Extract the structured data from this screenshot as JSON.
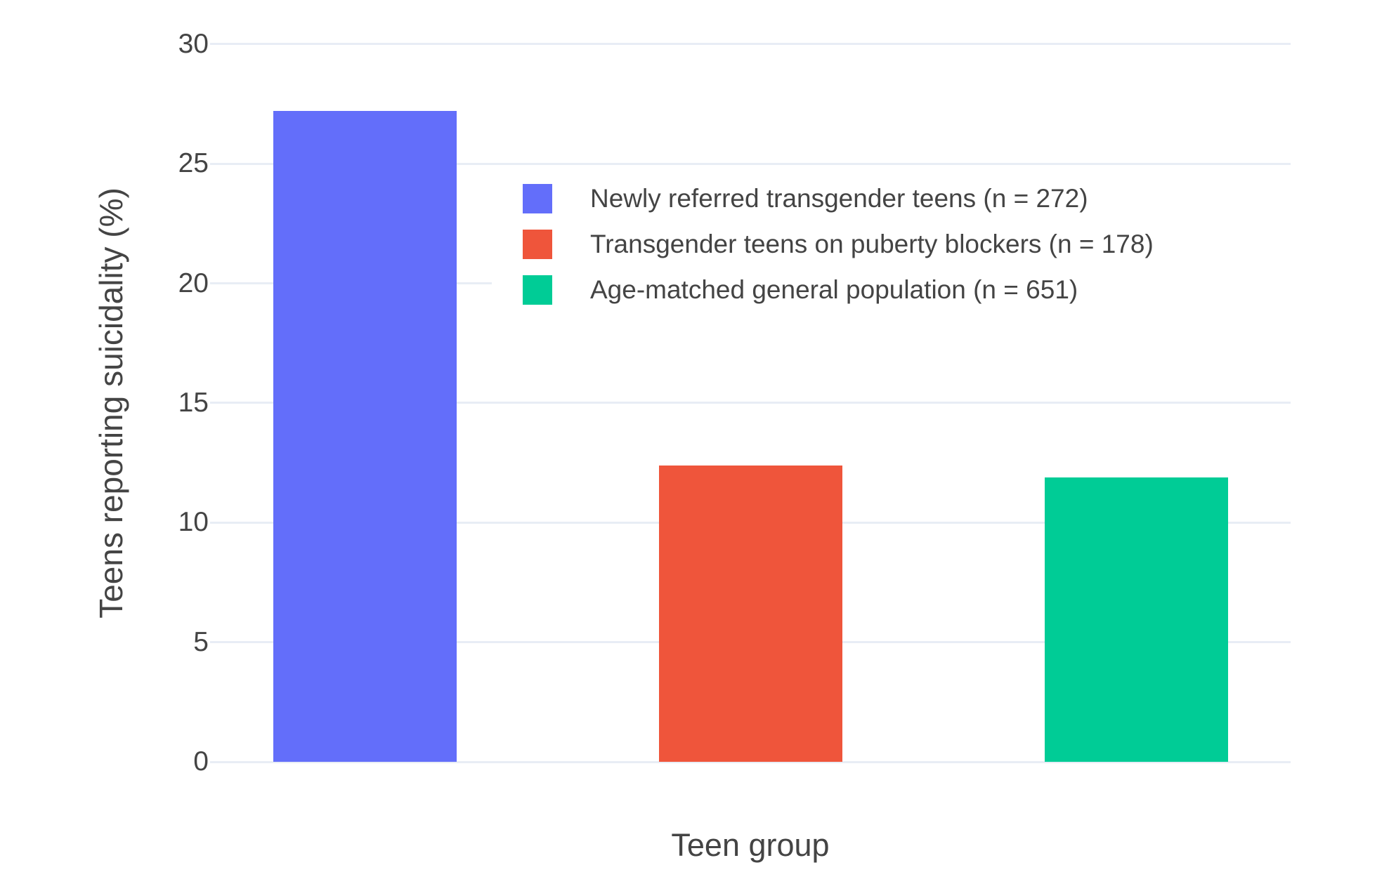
{
  "chart_data": {
    "type": "bar",
    "title": "",
    "xlabel": "Teen group",
    "ylabel": "Teens reporting suicidality (%)",
    "categories": [
      "Newly referred transgender teens",
      "Transgender teens on puberty blockers",
      "Age-matched general population"
    ],
    "values": [
      27.2,
      12.4,
      11.9
    ],
    "bar_colors": [
      "#636EFA",
      "#EF553B",
      "#00CC96"
    ],
    "yticks": [
      0,
      5,
      10,
      15,
      20,
      25,
      30
    ],
    "ylim": [
      0,
      30.7
    ],
    "grid": true,
    "legend_position": "inside-top-center",
    "legend": {
      "items": [
        {
          "label": "Newly referred transgender teens (n = 272)",
          "color": "#636EFA"
        },
        {
          "label": "Transgender teens on puberty blockers (n = 178)",
          "color": "#EF553B"
        },
        {
          "label": "Age-matched general population (n = 651)",
          "color": "#00CC96"
        }
      ]
    }
  },
  "colors": {
    "text": "#444444",
    "grid": "#E8EDF5",
    "background": "#FFFFFF"
  }
}
